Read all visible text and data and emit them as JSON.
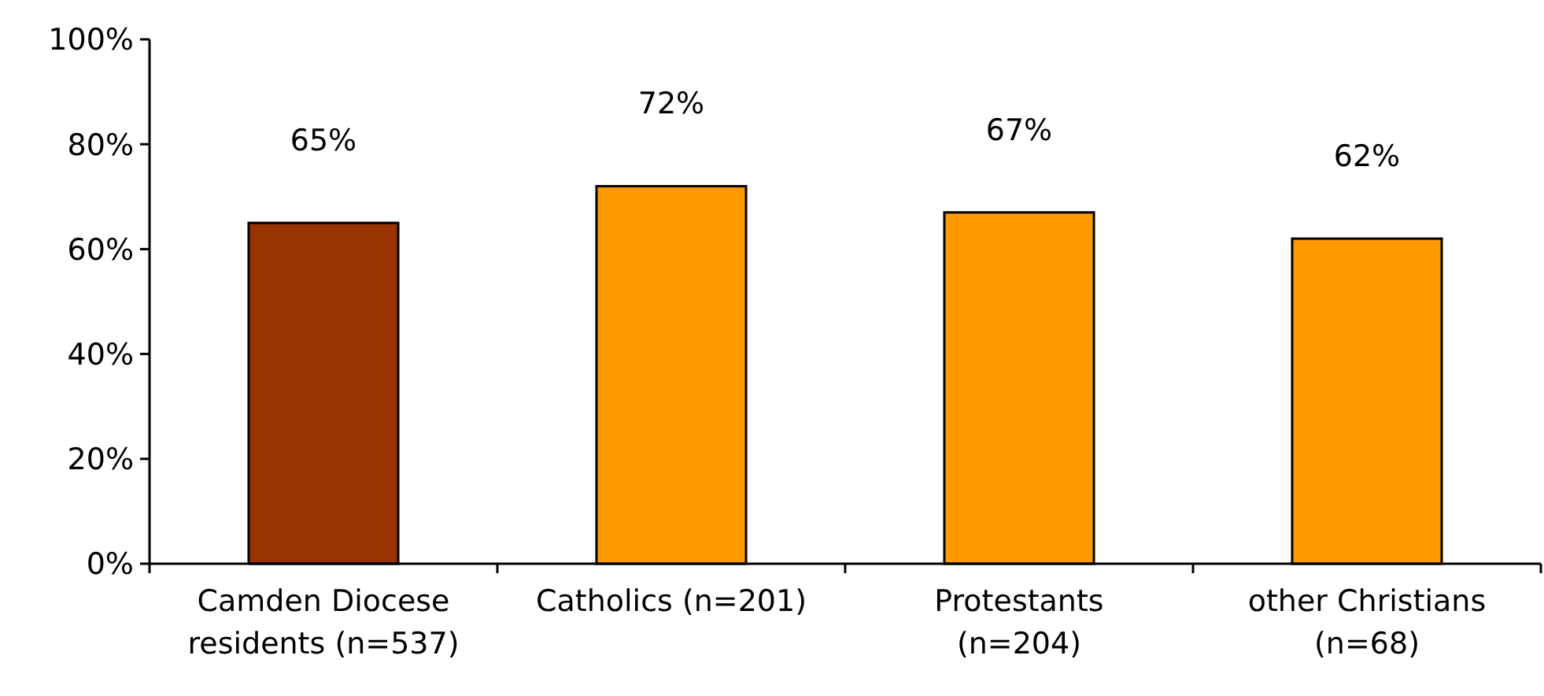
{
  "chart_data": {
    "type": "bar",
    "categories": [
      "Camden Diocese residents (n=537)",
      "Catholics (n=201)",
      "Protestants (n=204)",
      "other Christians (n=68)"
    ],
    "values": [
      65,
      72,
      67,
      62
    ],
    "colors": [
      "#993300",
      "#ff9900",
      "#ff9900",
      "#ff9900"
    ],
    "ylim": [
      0,
      100
    ],
    "yticks": [
      {
        "value": 0,
        "label": "0%"
      },
      {
        "value": 20,
        "label": "20%"
      },
      {
        "value": 40,
        "label": "40%"
      },
      {
        "value": 60,
        "label": "60%"
      },
      {
        "value": 80,
        "label": "80%"
      },
      {
        "value": 100,
        "label": "100%"
      }
    ],
    "value_labels": [
      "65%",
      "72%",
      "67%",
      "62%"
    ],
    "grid": false
  }
}
